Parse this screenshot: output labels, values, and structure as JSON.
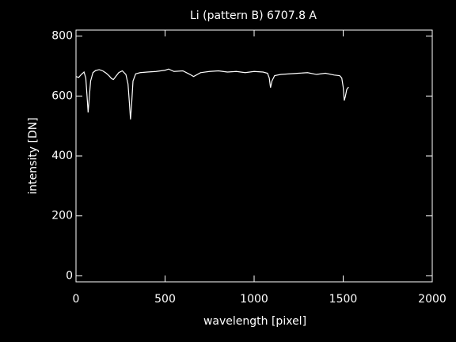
{
  "chart_data": {
    "type": "line",
    "title": "Li (pattern B) 6707.8 A",
    "x_label": "wavelength [pixel]",
    "y_label": "intensity [DN]",
    "x": [
      0,
      15,
      30,
      45,
      55,
      62,
      68,
      74,
      82,
      95,
      110,
      130,
      150,
      170,
      185,
      200,
      210,
      222,
      240,
      260,
      280,
      292,
      300,
      306,
      312,
      320,
      335,
      360,
      400,
      450,
      500,
      520,
      550,
      600,
      640,
      660,
      700,
      750,
      800,
      850,
      900,
      950,
      1000,
      1050,
      1075,
      1085,
      1092,
      1100,
      1115,
      1150,
      1200,
      1250,
      1300,
      1350,
      1400,
      1450,
      1480,
      1492,
      1500,
      1506,
      1512,
      1520,
      1530
    ],
    "series": [
      {
        "color": "#ffffff",
        "values": [
          665,
          662,
          672,
          680,
          660,
          600,
          545,
          590,
          650,
          678,
          685,
          688,
          684,
          676,
          668,
          658,
          655,
          664,
          678,
          684,
          672,
          640,
          575,
          522,
          570,
          650,
          674,
          678,
          680,
          682,
          686,
          690,
          682,
          684,
          672,
          665,
          678,
          682,
          684,
          680,
          682,
          678,
          682,
          680,
          676,
          660,
          628,
          650,
          668,
          672,
          674,
          676,
          678,
          672,
          676,
          670,
          668,
          660,
          630,
          585,
          598,
          622,
          630
        ]
      }
    ],
    "xlim": [
      0,
      2000
    ],
    "xticks": [
      0,
      500,
      1000,
      1500,
      2000
    ],
    "ylim": [
      -20,
      820
    ],
    "yticks": [
      0,
      200,
      400,
      600,
      800
    ]
  }
}
